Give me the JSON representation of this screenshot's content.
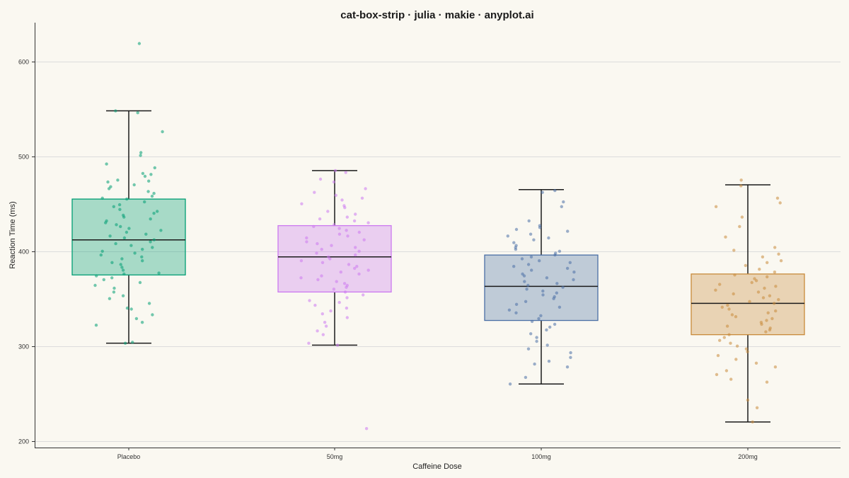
{
  "chart_data": {
    "type": "box",
    "title": "cat-box-strip · julia · makie · anyplot.ai",
    "xlabel": "Caffeine Dose",
    "ylabel": "Reaction Time (ms)",
    "ylim": [
      193,
      641
    ],
    "yticks": [
      200,
      300,
      400,
      500,
      600
    ],
    "grid": true,
    "categories": [
      "Placebo",
      "50mg",
      "100mg",
      "200mg"
    ],
    "colors": {
      "Placebo": "#009E73",
      "50mg": "#CC79F0",
      "100mg": "#4A6FA5",
      "200mg": "#C88A3A",
      "whisker": "#1a1a1a",
      "grid": "#dcdcdc",
      "background": "#FAF8F1"
    },
    "boxes": [
      {
        "category": "Placebo",
        "whisker_low": 303,
        "q1": 375,
        "median": 412,
        "q3": 455,
        "whisker_high": 548
      },
      {
        "category": "50mg",
        "whisker_low": 301,
        "q1": 357,
        "median": 394,
        "q3": 427,
        "whisker_high": 485
      },
      {
        "category": "100mg",
        "whisker_low": 260,
        "q1": 327,
        "median": 363,
        "q3": 396,
        "whisker_high": 465
      },
      {
        "category": "200mg",
        "whisker_low": 220,
        "q1": 312,
        "median": 345,
        "q3": 376,
        "whisker_high": 470
      }
    ],
    "points": {
      "Placebo": [
        619,
        548,
        546,
        526,
        504,
        501,
        492,
        488,
        482,
        481,
        479,
        475,
        474,
        473,
        470,
        468,
        466,
        463,
        461,
        458,
        456,
        455,
        452,
        449,
        447,
        444,
        442,
        440,
        438,
        436,
        434,
        432,
        430,
        428,
        426,
        424,
        422,
        420,
        418,
        416,
        414,
        412,
        410,
        408,
        406,
        404,
        402,
        400,
        398,
        396,
        394,
        392,
        390,
        388,
        386,
        383,
        380,
        377,
        376,
        374,
        372,
        370,
        367,
        364,
        361,
        357,
        353,
        350,
        345,
        340,
        339,
        333,
        329,
        325,
        322,
        304,
        303
      ],
      "50mg": [
        485,
        483,
        476,
        473,
        466,
        462,
        459,
        456,
        454,
        450,
        448,
        446,
        442,
        439,
        436,
        434,
        432,
        430,
        428,
        426,
        424,
        422,
        420,
        418,
        416,
        414,
        412,
        410,
        408,
        406,
        404,
        402,
        400,
        398,
        396,
        394,
        392,
        390,
        388,
        386,
        384,
        382,
        380,
        378,
        376,
        374,
        372,
        370,
        368,
        366,
        364,
        362,
        360,
        357,
        354,
        351,
        348,
        346,
        343,
        340,
        337,
        334,
        330,
        325,
        321,
        316,
        312,
        303,
        301,
        213
      ],
      "100mg": [
        464,
        462,
        452,
        447,
        432,
        427,
        425,
        423,
        421,
        418,
        416,
        414,
        412,
        409,
        406,
        404,
        402,
        400,
        398,
        396,
        394,
        392,
        390,
        388,
        386,
        384,
        382,
        380,
        378,
        376,
        374,
        372,
        370,
        368,
        366,
        364,
        362,
        360,
        358,
        356,
        354,
        352,
        350,
        347,
        344,
        341,
        338,
        335,
        332,
        329,
        326,
        323,
        320,
        317,
        313,
        309,
        305,
        301,
        297,
        293,
        288,
        284,
        281,
        278,
        267,
        260
      ],
      "200mg": [
        475,
        469,
        456,
        451,
        447,
        436,
        426,
        415,
        404,
        401,
        397,
        394,
        390,
        388,
        385,
        381,
        378,
        375,
        373,
        371,
        369,
        367,
        365,
        363,
        361,
        359,
        357,
        355,
        353,
        351,
        349,
        347,
        345,
        343,
        341,
        339,
        337,
        335,
        333,
        331,
        329,
        327,
        325,
        323,
        321,
        319,
        317,
        315,
        312,
        309,
        306,
        303,
        300,
        297,
        294,
        290,
        286,
        282,
        278,
        274,
        270,
        265,
        262,
        243,
        235,
        220
      ]
    }
  }
}
